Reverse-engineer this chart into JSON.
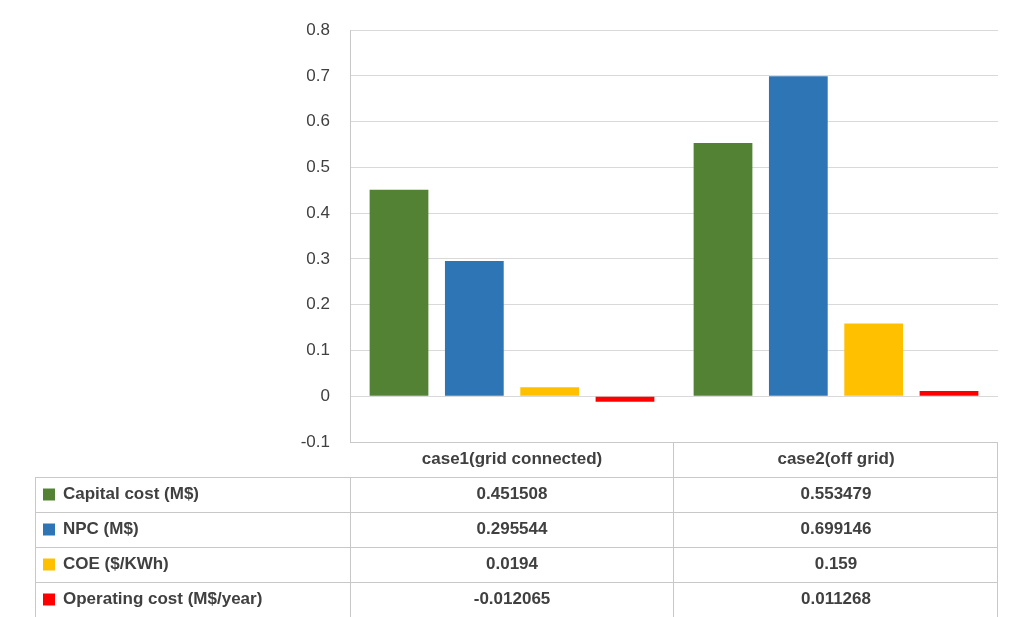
{
  "chart_data": {
    "type": "bar",
    "categories": [
      "case1(grid connected)",
      "case2(off grid)"
    ],
    "series": [
      {
        "name": "Capital cost (M$)",
        "color": "#548235",
        "values": [
          0.451508,
          0.553479
        ]
      },
      {
        "name": "NPC (M$)",
        "color": "#2e75b6",
        "values": [
          0.295544,
          0.699146
        ]
      },
      {
        "name": "COE ($/KWh)",
        "color": "#ffc000",
        "values": [
          0.0194,
          0.159
        ]
      },
      {
        "name": "Operating cost (M$/year)",
        "color": "#ff0000",
        "values": [
          -0.012065,
          0.011268
        ]
      }
    ],
    "ylim": [
      -0.1,
      0.8
    ],
    "yticks": [
      -0.1,
      0,
      0.1,
      0.2,
      0.3,
      0.4,
      0.5,
      0.6,
      0.7,
      0.8
    ],
    "grid": "y",
    "data_labels": true,
    "legend": "bottom"
  }
}
